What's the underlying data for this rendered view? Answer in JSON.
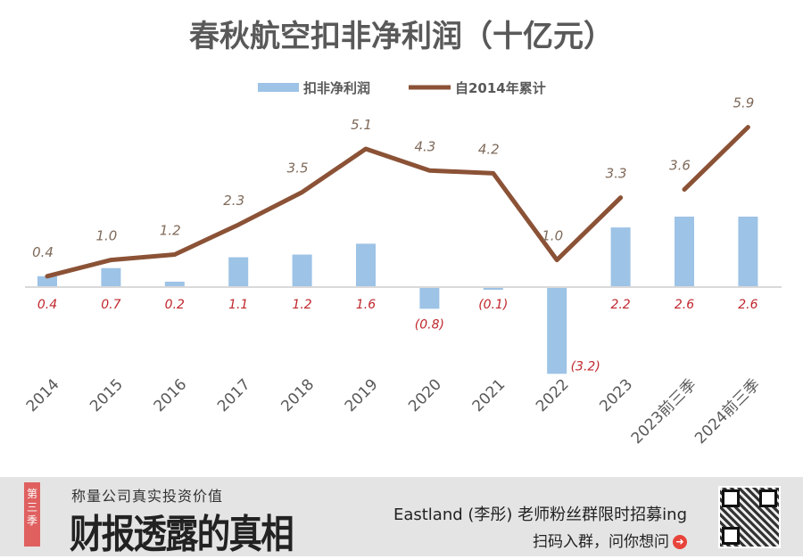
{
  "chart_data": {
    "type": "bar+line",
    "title": "春秋航空扣非净利润（十亿元）",
    "categories": [
      "2014",
      "2015",
      "2016",
      "2017",
      "2018",
      "2019",
      "2020",
      "2021",
      "2022",
      "2023",
      "2023前三季",
      "2024前三季"
    ],
    "series": [
      {
        "name": "扣非净利润",
        "type": "bar",
        "color": "#9dc3e6",
        "values": [
          0.4,
          0.7,
          0.2,
          1.1,
          1.2,
          1.6,
          -0.8,
          -0.1,
          -3.2,
          2.2,
          2.6,
          2.6
        ],
        "labels": [
          "0.4",
          "0.7",
          "0.2",
          "1.1",
          "1.2",
          "1.6",
          "(0.8)",
          "(0.1)",
          "(3.2)",
          "2.2",
          "2.6",
          "2.6"
        ]
      },
      {
        "name": "自2014年累计",
        "type": "line",
        "color": "#8b5236",
        "values": [
          0.4,
          1.0,
          1.2,
          2.3,
          3.5,
          5.1,
          4.3,
          4.2,
          1.0,
          3.3,
          3.6,
          5.9
        ],
        "labels": [
          "0.4",
          "1.0",
          "1.2",
          "2.3",
          "3.5",
          "5.1",
          "4.3",
          "4.2",
          "1.0",
          "3.3",
          "3.6",
          "5.9"
        ],
        "segments": [
          [
            0,
            9
          ],
          [
            10,
            11
          ]
        ]
      }
    ],
    "legend": "top-center",
    "grid": false
  },
  "footer": {
    "tag": "第三季",
    "slogan": "称量公司真实投资价值",
    "brand": "财报透露的真相",
    "promo": "Eastland (李彤) 老师粉丝群限时招募ing",
    "cta": "扫码入群，问你想问"
  }
}
